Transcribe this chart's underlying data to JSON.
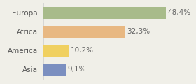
{
  "categories": [
    "Europa",
    "Africa",
    "America",
    "Asia"
  ],
  "values": [
    48.4,
    32.3,
    10.2,
    9.1
  ],
  "labels": [
    "48,4%",
    "32,3%",
    "10,2%",
    "9,1%"
  ],
  "bar_colors": [
    "#a8bb8a",
    "#e8b882",
    "#f0d060",
    "#7b8fc0"
  ],
  "background_color": "#f0efe8",
  "xlim": [
    0,
    58
  ],
  "bar_height": 0.62,
  "label_fontsize": 7.5,
  "category_fontsize": 7.5,
  "label_color": "#666666",
  "category_color": "#555555"
}
